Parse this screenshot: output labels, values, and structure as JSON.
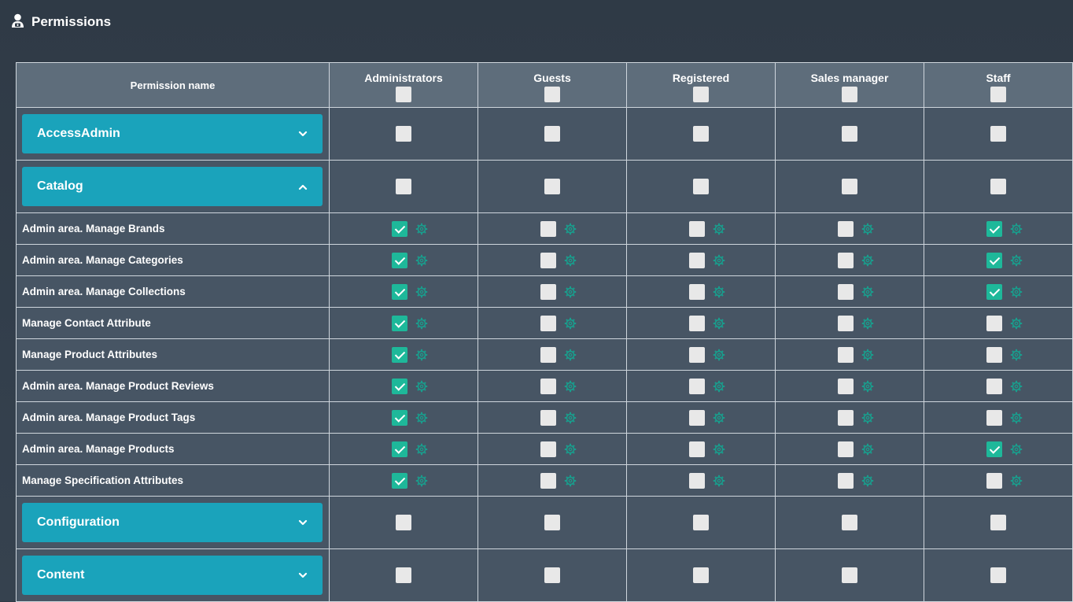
{
  "page": {
    "title": "Permissions",
    "icon": "user-lock-icon"
  },
  "table": {
    "name_header": "Permission name",
    "roles": [
      "Administrators",
      "Guests",
      "Registered",
      "Sales manager",
      "Staff"
    ],
    "rows": [
      {
        "type": "group",
        "label": "AccessAdmin",
        "expanded": false,
        "values": [
          false,
          false,
          false,
          false,
          false
        ]
      },
      {
        "type": "group",
        "label": "Catalog",
        "expanded": true,
        "values": [
          false,
          false,
          false,
          false,
          false
        ]
      },
      {
        "type": "perm",
        "label": "Admin area. Manage Brands",
        "values": [
          true,
          false,
          false,
          false,
          true
        ]
      },
      {
        "type": "perm",
        "label": "Admin area. Manage Categories",
        "values": [
          true,
          false,
          false,
          false,
          true
        ]
      },
      {
        "type": "perm",
        "label": "Admin area. Manage Collections",
        "values": [
          true,
          false,
          false,
          false,
          true
        ]
      },
      {
        "type": "perm",
        "label": "Manage Contact Attribute",
        "values": [
          true,
          false,
          false,
          false,
          false
        ]
      },
      {
        "type": "perm",
        "label": "Manage Product Attributes",
        "values": [
          true,
          false,
          false,
          false,
          false
        ]
      },
      {
        "type": "perm",
        "label": "Admin area. Manage Product Reviews",
        "values": [
          true,
          false,
          false,
          false,
          false
        ]
      },
      {
        "type": "perm",
        "label": "Admin area. Manage Product Tags",
        "values": [
          true,
          false,
          false,
          false,
          false
        ]
      },
      {
        "type": "perm",
        "label": "Admin area. Manage Products",
        "values": [
          true,
          false,
          false,
          false,
          true
        ]
      },
      {
        "type": "perm",
        "label": "Manage Specification Attributes",
        "values": [
          true,
          false,
          false,
          false,
          false
        ]
      },
      {
        "type": "group",
        "label": "Configuration",
        "expanded": false,
        "values": [
          false,
          false,
          false,
          false,
          false
        ]
      },
      {
        "type": "group",
        "label": "Content",
        "expanded": false,
        "values": [
          false,
          false,
          false,
          false,
          false
        ]
      }
    ]
  },
  "colors": {
    "accent": "#1aa3bb",
    "checked": "#1eb89a",
    "gear": "#1a9c8c"
  }
}
